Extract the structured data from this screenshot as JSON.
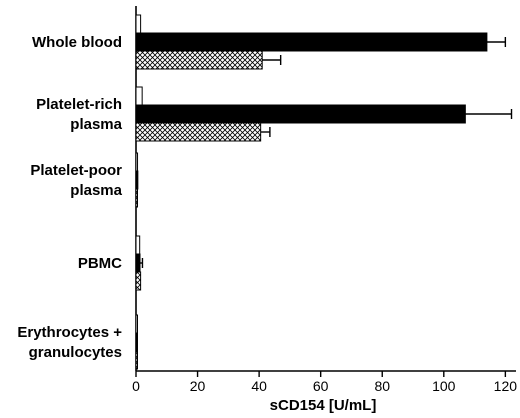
{
  "chart_data": {
    "type": "bar",
    "orientation": "horizontal",
    "categories": [
      [
        "Whole blood"
      ],
      [
        "Platelet-rich",
        "plasma"
      ],
      [
        "Platelet-poor",
        "plasma"
      ],
      [
        "PBMC"
      ],
      [
        "Erythrocytes +",
        "granulocytes"
      ]
    ],
    "series": [
      {
        "fill": "white",
        "values": [
          1.5,
          2.0,
          0.5,
          1.2,
          0.3
        ],
        "errors": [
          0.0,
          0.0,
          0.0,
          0.0,
          0.0
        ]
      },
      {
        "fill": "black",
        "values": [
          114,
          107,
          0.6,
          1.3,
          0.3
        ],
        "errors": [
          6,
          15,
          0.0,
          0.8,
          0.0
        ]
      },
      {
        "fill": "crosshatch",
        "values": [
          41,
          40.5,
          0.4,
          1.5,
          0.2
        ],
        "errors": [
          6,
          3,
          0.0,
          0.0,
          0.0
        ]
      }
    ],
    "xlabel": "sCD154 [U/mL]",
    "xticks": [
      0,
      20,
      40,
      60,
      80,
      100,
      120
    ],
    "xlim": [
      0,
      128
    ],
    "grid": false,
    "colors": {
      "axis": "#000000",
      "solid": "#000000",
      "open": "#ffffff"
    }
  }
}
